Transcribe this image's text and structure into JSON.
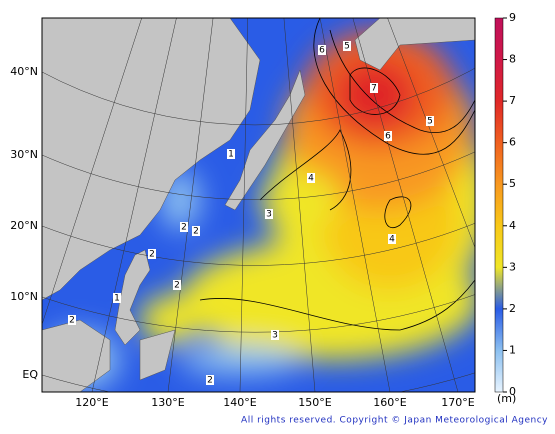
{
  "map": {
    "lat_labels": [
      "40°N",
      "30°N",
      "20°N",
      "10°N",
      "EQ"
    ],
    "lon_labels": [
      "120°E",
      "130°E",
      "140°E",
      "150°E",
      "160°E",
      "170°E"
    ],
    "contour_labels": [
      6,
      5,
      7,
      5,
      6,
      4,
      3,
      4,
      1,
      2,
      2,
      2,
      2,
      1,
      2,
      3,
      2
    ],
    "colorbar": {
      "ticks": [
        0,
        1,
        2,
        3,
        4,
        5,
        6,
        7,
        8,
        9
      ],
      "colors": [
        "#e8f4ff",
        "#8cc0f0",
        "#2a5ce6",
        "#f0e628",
        "#f8c818",
        "#f89820",
        "#f06020",
        "#e02828",
        "#d01848",
        "#c0105a"
      ],
      "unit": "(m)"
    },
    "copyright": "All rights reserved. Copyright © Japan Meteorological Agency"
  }
}
